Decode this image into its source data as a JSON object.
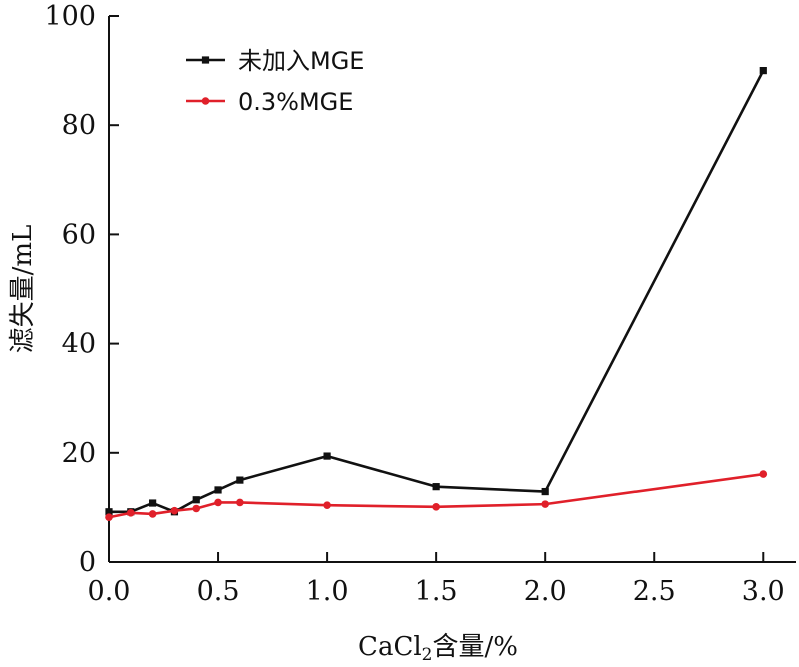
{
  "chart_data": {
    "type": "line",
    "xlabel_main": "CaCl",
    "xlabel_sub": "2",
    "xlabel_rest": "含量/%",
    "ylabel": "滤失量/mL",
    "xlim": [
      0,
      3.15
    ],
    "ylim": [
      0,
      100
    ],
    "xticks": [
      "0.0",
      "0.5",
      "1.0",
      "1.5",
      "2.0",
      "2.5",
      "3.0"
    ],
    "yticks": [
      "0",
      "20",
      "40",
      "60",
      "80",
      "100"
    ],
    "legend_position": "top-left",
    "grid": false,
    "series": [
      {
        "name": "未加入MGE",
        "color": "#111111",
        "marker": "square",
        "x": [
          0,
          0.1,
          0.2,
          0.3,
          0.4,
          0.5,
          0.6,
          1.0,
          1.5,
          2.0,
          3.0
        ],
        "y": [
          9.2,
          9.2,
          10.8,
          9.2,
          11.4,
          13.2,
          15.0,
          19.4,
          13.8,
          12.9,
          90.0
        ]
      },
      {
        "name": "0.3%MGE",
        "color": "#e0202a",
        "marker": "circle",
        "x": [
          0,
          0.1,
          0.2,
          0.3,
          0.4,
          0.5,
          0.6,
          1.0,
          1.5,
          2.0,
          3.0
        ],
        "y": [
          8.2,
          9.0,
          8.8,
          9.4,
          9.8,
          10.9,
          10.9,
          10.4,
          10.1,
          10.6,
          16.1
        ]
      }
    ]
  }
}
